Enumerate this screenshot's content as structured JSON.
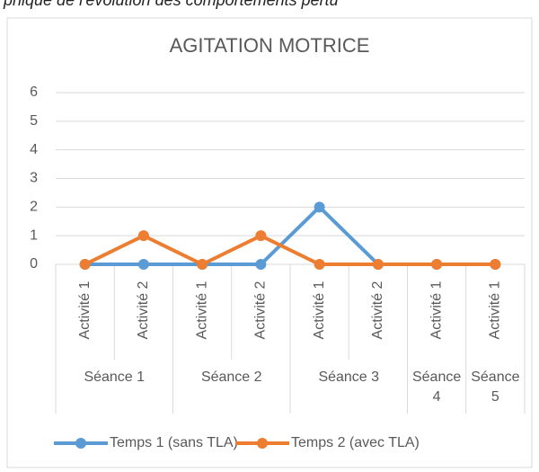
{
  "caption": "phique de l'évolution des comportements pertu",
  "chart_data": {
    "type": "line",
    "title": "AGITATION MOTRICE",
    "groups": [
      {
        "label": "Séance 1",
        "categories": [
          "Activité 1",
          "Activité 2"
        ]
      },
      {
        "label": "Séance 2",
        "categories": [
          "Activité 1",
          "Activité 2"
        ]
      },
      {
        "label": "Séance 3",
        "categories": [
          "Activité 1",
          "Activité 2"
        ]
      },
      {
        "label": "Séance 4",
        "categories": [
          "Activité 1"
        ]
      },
      {
        "label": "Séance 5",
        "categories": [
          "Activité 1"
        ]
      }
    ],
    "series": [
      {
        "name": "Temps 1 (sans TLA)",
        "color": "#5b9bd5",
        "values": [
          0,
          0,
          0,
          0,
          2,
          0,
          0,
          0
        ]
      },
      {
        "name": "Temps 2 (avec TLA)",
        "color": "#ed7d31",
        "values": [
          0,
          1,
          0,
          1,
          0,
          0,
          0,
          0
        ]
      }
    ],
    "ylim": [
      0,
      6
    ],
    "yticks": [
      0,
      1,
      2,
      3,
      4,
      5,
      6
    ],
    "grid": true,
    "legend": "bottom"
  }
}
